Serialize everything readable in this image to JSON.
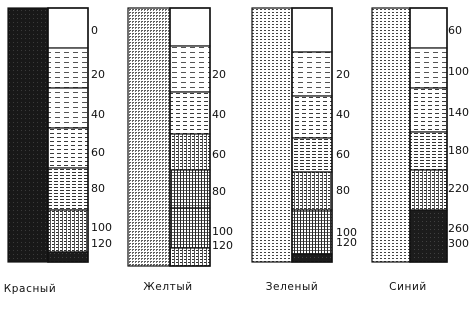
{
  "panels": [
    {
      "caption": "Красный",
      "labels": [
        "0",
        "20",
        "40",
        "60",
        "80",
        "100",
        "120"
      ]
    },
    {
      "caption": "Желтый",
      "labels": [
        "20",
        "40",
        "60",
        "80",
        "100",
        "120"
      ]
    },
    {
      "caption": "Зеленый",
      "labels": [
        "20",
        "40",
        "60",
        "80",
        "100",
        "120"
      ]
    },
    {
      "caption": "Синий",
      "labels": [
        "60",
        "100",
        "140",
        "180",
        "220",
        "260",
        "300"
      ]
    }
  ]
}
